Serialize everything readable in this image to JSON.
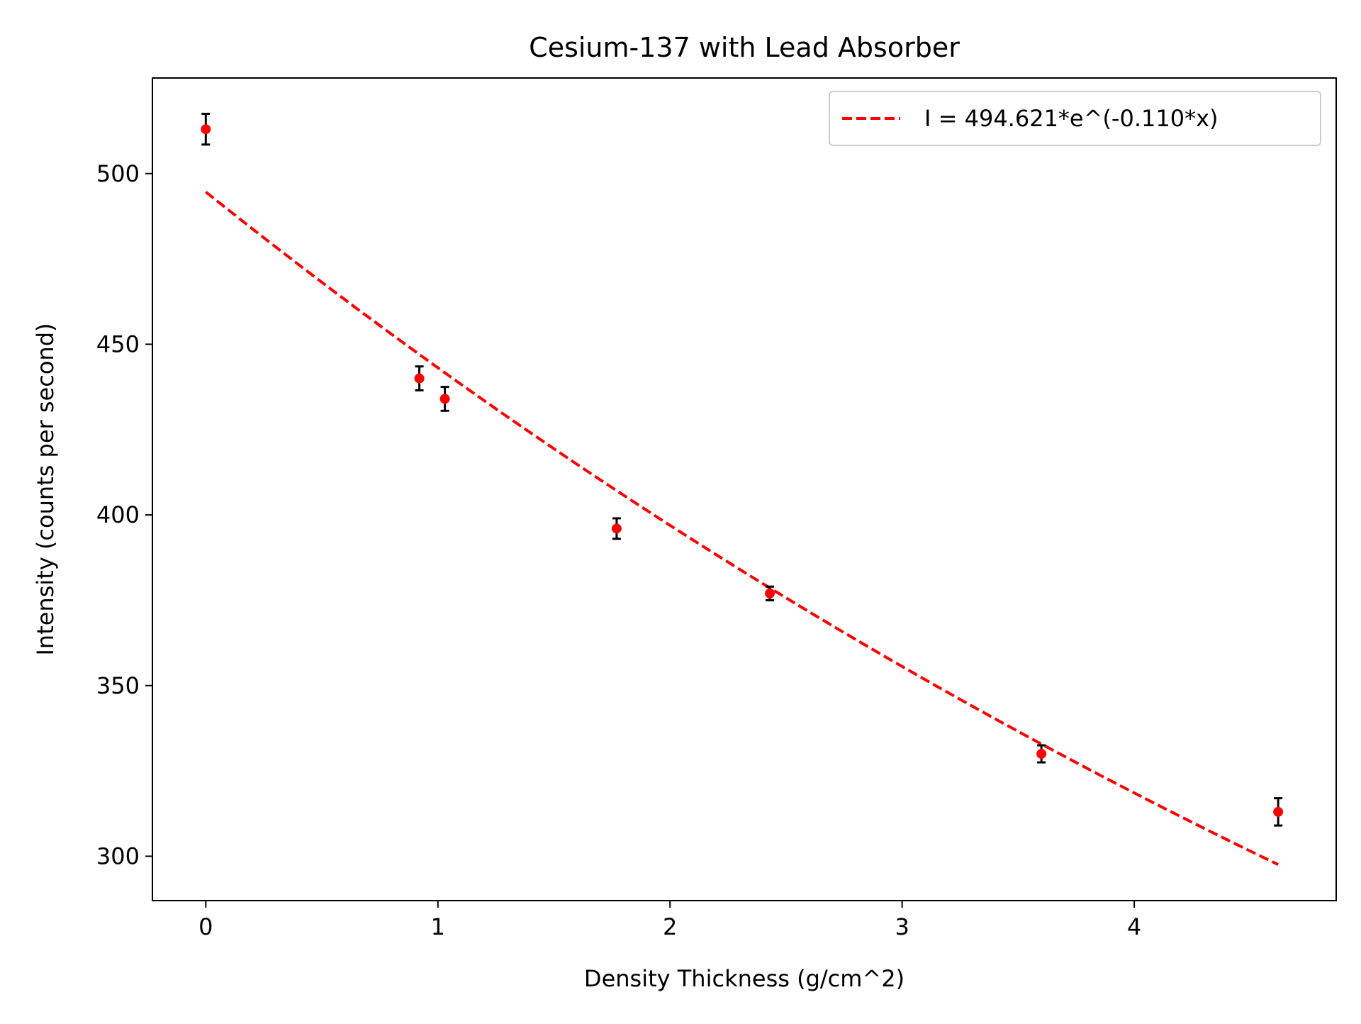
{
  "chart_data": {
    "type": "scatter",
    "title": "Cesium-137 with Lead Absorber",
    "xlabel": "Density Thickness (g/cm^2)",
    "ylabel": "Intensity (counts per second)",
    "xlim": [
      -0.23,
      4.87
    ],
    "ylim": [
      287,
      528
    ],
    "x_ticks": [
      0,
      1,
      2,
      3,
      4
    ],
    "x_tick_labels": [
      "0",
      "1",
      "2",
      "3",
      "4"
    ],
    "y_ticks": [
      300,
      350,
      400,
      450,
      500
    ],
    "y_tick_labels": [
      "300",
      "350",
      "400",
      "450",
      "500"
    ],
    "grid": false,
    "legend_position": "top-right",
    "points": [
      {
        "x": 0.0,
        "y": 513,
        "err": 4.5
      },
      {
        "x": 0.92,
        "y": 440,
        "err": 3.5
      },
      {
        "x": 1.03,
        "y": 434,
        "err": 3.5
      },
      {
        "x": 1.77,
        "y": 396,
        "err": 3.0
      },
      {
        "x": 2.43,
        "y": 377,
        "err": 2.0
      },
      {
        "x": 3.6,
        "y": 330,
        "err": 2.5
      },
      {
        "x": 4.62,
        "y": 313,
        "err": 4.0
      }
    ],
    "fit": {
      "name": "I = 494.621*e^(-0.110*x)",
      "amplitude": 494.621,
      "rate": 0.11,
      "x_range": [
        0,
        4.62
      ],
      "color": "#ff0000",
      "style": "dashed"
    },
    "marker_color": "#ff0000",
    "errorbar_color": "#000000"
  }
}
